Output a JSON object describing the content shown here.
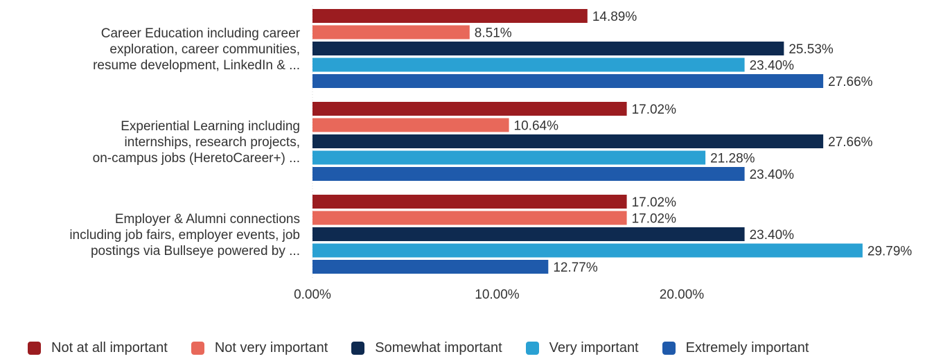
{
  "chart_data": {
    "type": "bar",
    "orientation": "horizontal",
    "categories": [
      "Career Education including career exploration, career communities, resume development, LinkedIn & ...",
      "Experiential Learning including internships, research projects, on-campus jobs (HeretoCareer+) ...",
      "Employer & Alumni connections including job fairs, employer events, job postings via Bullseye powered by ..."
    ],
    "category_lines": [
      [
        "Career Education including career",
        "exploration, career communities,",
        "resume development, LinkedIn & ..."
      ],
      [
        "Experiential Learning including",
        "internships, research projects,",
        "on-campus jobs (HeretoCareer+) ..."
      ],
      [
        "Employer & Alumni connections",
        "including job fairs, employer events, job",
        "postings via Bullseye powered by ..."
      ]
    ],
    "series": [
      {
        "name": "Not at all important",
        "color": "#9b1c20",
        "values": [
          14.89,
          17.02,
          17.02
        ],
        "labels": [
          "14.89%",
          "17.02%",
          "17.02%"
        ]
      },
      {
        "name": "Not very important",
        "color": "#e8685a",
        "values": [
          8.51,
          10.64,
          17.02
        ],
        "labels": [
          "8.51%",
          "10.64%",
          "17.02%"
        ]
      },
      {
        "name": "Somewhat important",
        "color": "#0e2a50",
        "values": [
          25.53,
          27.66,
          23.4
        ],
        "labels": [
          "25.53%",
          "27.66%",
          "23.40%"
        ]
      },
      {
        "name": "Very important",
        "color": "#2aa1d3",
        "values": [
          23.4,
          21.28,
          29.79
        ],
        "labels": [
          "23.40%",
          "21.28%",
          "29.79%"
        ]
      },
      {
        "name": "Extremely important",
        "color": "#1f5aab",
        "values": [
          27.66,
          23.4,
          12.77
        ],
        "labels": [
          "27.66%",
          "23.40%",
          "12.77%"
        ]
      }
    ],
    "xticks": [
      "0.00%",
      "10.00%",
      "20.00%"
    ],
    "xtick_values": [
      0,
      10,
      20
    ],
    "xlim": [
      0,
      30
    ],
    "xlabel": "",
    "ylabel": "",
    "grid": false,
    "legend_position": "bottom"
  }
}
